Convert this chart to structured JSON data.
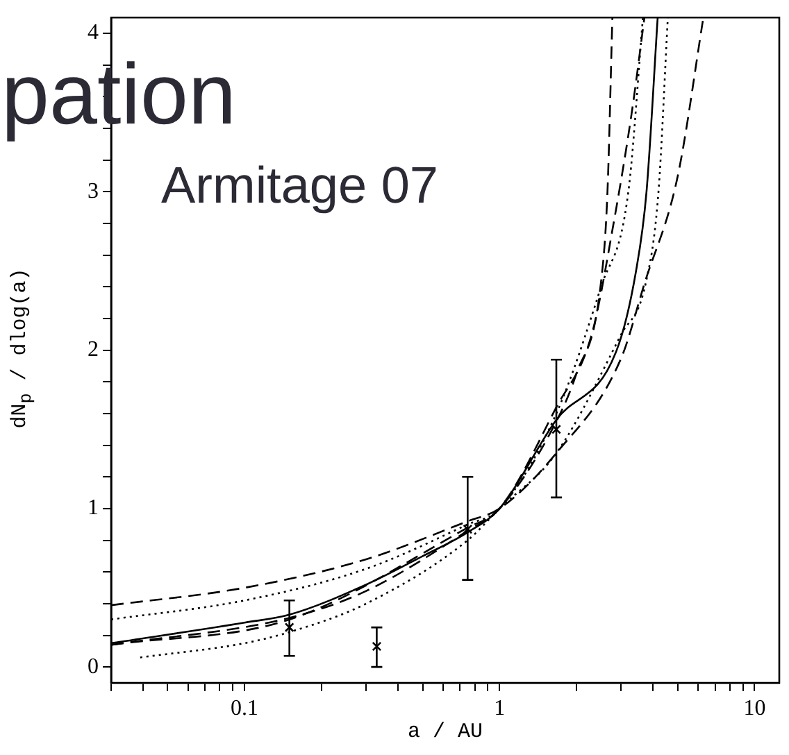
{
  "chart_data": {
    "type": "line",
    "xlabel": "a / AU",
    "ylabel": "dN$_{p}$ / dlog(a)",
    "annotations": [
      "pation",
      "Armitage 07"
    ],
    "log": "x",
    "grid": false,
    "legend": false,
    "xlim": [
      0.03,
      12.5
    ],
    "ylim": [
      -0.1,
      4.1
    ],
    "xticks": [
      {
        "value": 0.03,
        "label": null
      },
      {
        "value": 0.04,
        "label": null
      },
      {
        "value": 0.05,
        "label": null
      },
      {
        "value": 0.06,
        "label": null
      },
      {
        "value": 0.07,
        "label": null
      },
      {
        "value": 0.08,
        "label": null
      },
      {
        "value": 0.09,
        "label": null
      },
      0.1,
      {
        "value": 0.2,
        "label": null
      },
      {
        "value": 0.3,
        "label": null
      },
      {
        "value": 0.4,
        "label": null
      },
      {
        "value": 0.5,
        "label": null
      },
      {
        "value": 0.6,
        "label": null
      },
      {
        "value": 0.7,
        "label": null
      },
      {
        "value": 0.8,
        "label": null
      },
      {
        "value": 0.9,
        "label": null
      },
      1,
      {
        "value": 2,
        "label": null
      },
      {
        "value": 3,
        "label": null
      },
      {
        "value": 4,
        "label": null
      },
      {
        "value": 5,
        "label": null
      },
      {
        "value": 6,
        "label": null
      },
      {
        "value": 7,
        "label": null
      },
      {
        "value": 8,
        "label": null
      },
      {
        "value": 9,
        "label": null
      },
      10
    ],
    "yticks": [
      0,
      {
        "value": 0.2,
        "label": null
      },
      {
        "value": 0.4,
        "label": null
      },
      {
        "value": 0.6,
        "label": null
      },
      {
        "value": 0.8,
        "label": null
      },
      1,
      {
        "value": 1.2,
        "label": null
      },
      {
        "value": 1.4,
        "label": null
      },
      {
        "value": 1.6,
        "label": null
      },
      {
        "value": 1.8,
        "label": null
      },
      2,
      {
        "value": 2.2,
        "label": null
      },
      {
        "value": 2.4,
        "label": null
      },
      {
        "value": 2.6,
        "label": null
      },
      {
        "value": 2.8,
        "label": null
      },
      3,
      {
        "value": 3.2,
        "label": null
      },
      {
        "value": 3.4,
        "label": null
      },
      {
        "value": 3.6,
        "label": null
      },
      {
        "value": 3.8,
        "label": null
      },
      4
    ],
    "series": [
      {
        "type": "line",
        "color": "#000000",
        "line_style": "solid",
        "marker": "none",
        "x": [
          0.03,
          0.1,
          0.15,
          0.3,
          0.5,
          0.75,
          1,
          1.67,
          2.88,
          3.43,
          3.77,
          4.17
        ],
        "values": [
          0.15,
          0.28,
          0.33,
          0.52,
          0.7,
          0.85,
          1,
          1.56,
          2,
          2.5,
          3,
          4.1
        ]
      },
      {
        "type": "line",
        "color": "#000000",
        "line_style": "dashed",
        "marker": "none",
        "x": [
          0.03,
          0.15,
          0.3,
          0.75,
          1,
          1.67,
          2,
          2.5,
          2.65,
          2.77
        ],
        "values": [
          0.14,
          0.31,
          0.48,
          0.86,
          1,
          1.55,
          1.85,
          2.43,
          3,
          4.1
        ]
      },
      {
        "type": "line",
        "color": "#000000",
        "line_style": "dotted",
        "marker": "none",
        "x": [
          0.03,
          0.1,
          0.3,
          0.75,
          1,
          1.67,
          2.5,
          3.2,
          3.65
        ],
        "values": [
          0.3,
          0.42,
          0.62,
          0.9,
          1,
          1.6,
          2.4,
          3,
          4.1
        ]
      },
      {
        "type": "line",
        "color": "#000000",
        "line_style": "dotted",
        "marker": "none",
        "x": [
          0.039,
          0.1,
          0.15,
          0.3,
          0.75,
          1,
          1.67,
          3,
          3.74,
          4.2,
          4.57
        ],
        "values": [
          0.06,
          0.15,
          0.22,
          0.4,
          0.8,
          1,
          1.35,
          2.1,
          2.42,
          3,
          4.1
        ]
      },
      {
        "type": "line",
        "color": "#000000",
        "line_style": "dashed",
        "marker": "none",
        "x": [
          0.03,
          0.1,
          0.3,
          0.75,
          1,
          1.67,
          3,
          3.7,
          5,
          6.3
        ],
        "values": [
          0.39,
          0.5,
          0.68,
          0.92,
          1,
          1.35,
          1.95,
          2.42,
          3.1,
          4.1
        ]
      },
      {
        "type": "line",
        "color": "#000000",
        "line_style": "dashed",
        "marker": "none",
        "x": [
          0.03,
          0.15,
          0.75,
          1,
          1.67,
          2.3,
          2.8,
          3.3,
          3.7
        ],
        "values": [
          0.14,
          0.3,
          0.88,
          1,
          1.64,
          2.1,
          2.8,
          3.5,
          4.1
        ]
      },
      {
        "type": "scatter",
        "color": "#000000",
        "marker": "cross",
        "x": [
          0.15,
          0.33,
          0.75,
          1.67
        ],
        "values": [
          0.25,
          0.13,
          0.87,
          1.5
        ],
        "errors": [
          [
            0.07,
            0.42
          ],
          [
            0,
            0.25
          ],
          [
            0.55,
            1.2
          ],
          [
            1.07,
            1.94
          ]
        ]
      }
    ]
  }
}
